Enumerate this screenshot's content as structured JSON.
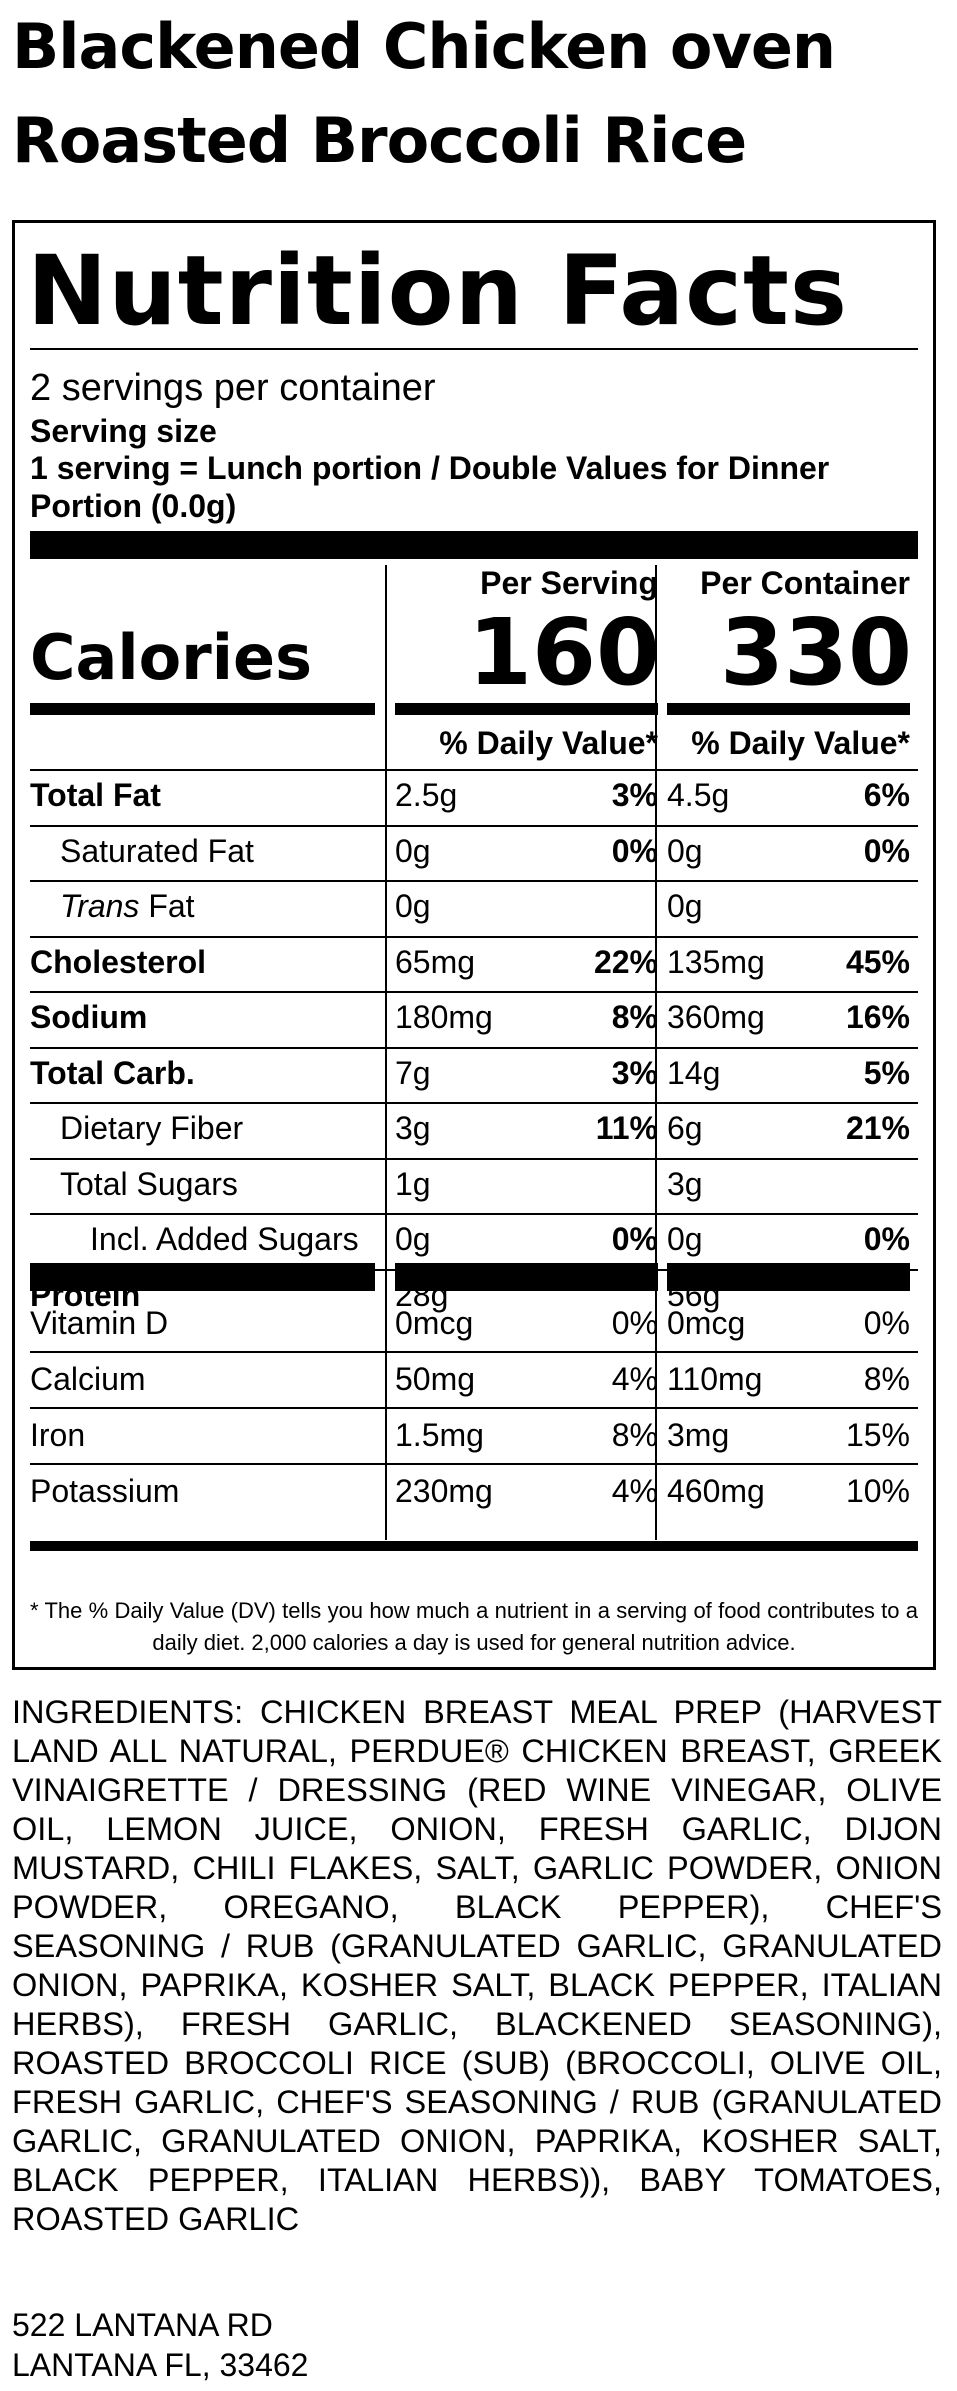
{
  "product_title_line1": "Blackened Chicken oven",
  "product_title_line2": "Roasted Broccoli Rice",
  "label": {
    "heading": "Nutrition Facts",
    "servings_per_container": "2 servings per container",
    "serving_size_label": "Serving size",
    "serving_size_value": "1 serving = Lunch portion / Double Values for Dinner Portion (0.0g)",
    "col1_header": "Per Serving",
    "col2_header": "Per Container",
    "calories_label": "Calories",
    "calories_serving": "160",
    "calories_container": "330",
    "dv_header": "% Daily Value*",
    "rows": [
      {
        "name": "Total Fat",
        "s_amt": "2.5g",
        "s_dv": "3%",
        "c_amt": "4.5g",
        "c_dv": "6%"
      },
      {
        "name": "Saturated Fat",
        "s_amt": "0g",
        "s_dv": "0%",
        "c_amt": "0g",
        "c_dv": "0%"
      },
      {
        "name_italic": "Trans",
        "name_rest": " Fat",
        "s_amt": "0g",
        "s_dv": "",
        "c_amt": "0g",
        "c_dv": ""
      },
      {
        "name": "Cholesterol",
        "s_amt": "65mg",
        "s_dv": "22%",
        "c_amt": "135mg",
        "c_dv": "45%"
      },
      {
        "name": "Sodium",
        "s_amt": "180mg",
        "s_dv": "8%",
        "c_amt": "360mg",
        "c_dv": "16%"
      },
      {
        "name": "Total Carb.",
        "s_amt": "7g",
        "s_dv": "3%",
        "c_amt": "14g",
        "c_dv": "5%"
      },
      {
        "name": "Dietary Fiber",
        "s_amt": "3g",
        "s_dv": "11%",
        "c_amt": "6g",
        "c_dv": "21%"
      },
      {
        "name": "Total Sugars",
        "s_amt": "1g",
        "s_dv": "",
        "c_amt": "3g",
        "c_dv": ""
      },
      {
        "name": "Incl. Added Sugars",
        "s_amt": "0g",
        "s_dv": "0%",
        "c_amt": "0g",
        "c_dv": "0%"
      },
      {
        "name": "Protein",
        "s_amt": "28g",
        "s_dv": "",
        "c_amt": "56g",
        "c_dv": ""
      }
    ],
    "vitamins": [
      {
        "name": "Vitamin D",
        "s_amt": "0mcg",
        "s_dv": "0%",
        "c_amt": "0mcg",
        "c_dv": "0%"
      },
      {
        "name": "Calcium",
        "s_amt": "50mg",
        "s_dv": "4%",
        "c_amt": "110mg",
        "c_dv": "8%"
      },
      {
        "name": "Iron",
        "s_amt": "1.5mg",
        "s_dv": "8%",
        "c_amt": "3mg",
        "c_dv": "15%"
      },
      {
        "name": "Potassium",
        "s_amt": "230mg",
        "s_dv": "4%",
        "c_amt": "460mg",
        "c_dv": "10%"
      }
    ],
    "footnote": "* The % Daily Value (DV) tells you how much a nutrient in a serving of food contributes to a daily diet. 2,000 calories a day is used for general nutrition advice."
  },
  "ingredients": "INGREDIENTS: CHICKEN BREAST MEAL PREP (HARVEST LAND ALL NATURAL, PERDUE® CHICKEN BREAST, GREEK VINAIGRETTE / DRESSING (RED WINE VINEGAR, OLIVE OIL, LEMON JUICE, ONION, FRESH GARLIC, DIJON MUSTARD, CHILI FLAKES, SALT, GARLIC POWDER, ONION POWDER, OREGANO, BLACK PEPPER), CHEF'S SEASONING / RUB (GRANULATED GARLIC, GRANULATED ONION, PAPRIKA, KOSHER SALT, BLACK PEPPER, ITALIAN HERBS), FRESH GARLIC, BLACKENED SEASONING), ROASTED BROCCOLI RICE (SUB) (BROCCOLI, OLIVE OIL, FRESH GARLIC, CHEF'S SEASONING / RUB (GRANULATED GARLIC, GRANULATED ONION, PAPRIKA, KOSHER SALT, BLACK PEPPER, ITALIAN HERBS)), BABY TOMATOES, ROASTED GARLIC",
  "address_line1": "522 LANTANA RD",
  "address_line2": "LANTANA FL, 33462"
}
